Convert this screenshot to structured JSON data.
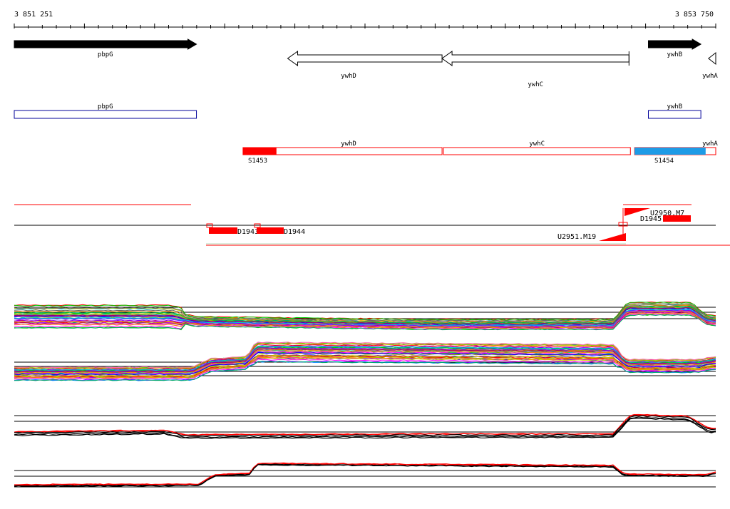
{
  "ruler": {
    "start_label": "3 851 251",
    "end_label": "3 853 750",
    "start": 3851251,
    "end": 3853750
  },
  "colors": {
    "gene_fill": "#000000",
    "outline_blue": "#000099",
    "outline_red": "#ff0000",
    "segment_blue": "#1e9be6",
    "feature_red": "#ff0000"
  },
  "genes": [
    {
      "id": "pbpG",
      "label": "pbpG",
      "start": 3851251,
      "end": 3851900,
      "strand": "+"
    },
    {
      "id": "ywhD",
      "label": "ywhD",
      "start": 3852225,
      "end": 3852775,
      "strand": "-"
    },
    {
      "id": "ywhC",
      "label": "ywhC",
      "start": 3852775,
      "end": 3853441,
      "strand": "-"
    },
    {
      "id": "ywhB",
      "label": "ywhB",
      "start": 3853510,
      "end": 3853697,
      "strand": "+"
    },
    {
      "id": "ywhA",
      "label": "ywhA",
      "start": 3853714,
      "end": 3853750,
      "strand": "-"
    }
  ],
  "blue_boxes": [
    {
      "id": "pbpG",
      "label": "pbpG",
      "start": 3851251,
      "end": 3851900
    },
    {
      "id": "ywhB",
      "label": "ywhB",
      "start": 3853510,
      "end": 3853697
    }
  ],
  "red_boxes": [
    {
      "id": "ywhD",
      "label": "ywhD",
      "start": 3852066,
      "end": 3852775,
      "filled_start": 3852066,
      "filled_end": 3852185,
      "filled_color": "#ff0000",
      "segment_label": "S1453"
    },
    {
      "id": "ywhC",
      "label": "ywhC",
      "start": 3852780,
      "end": 3853446,
      "filled_start": null,
      "filled_end": null,
      "filled_color": null,
      "segment_label": ""
    },
    {
      "id": "ywhA",
      "label": "ywhA",
      "start": 3853461,
      "end": 3853750,
      "filled_start": 3853461,
      "filled_end": 3853714,
      "filled_color": "#1e9be6",
      "segment_label": "S1454"
    }
  ],
  "features": {
    "D1943": "D1943",
    "D1944": "D1944",
    "D1945": "D1945",
    "U2950": "U2950.M7",
    "U2951": "U2951.M19"
  }
}
